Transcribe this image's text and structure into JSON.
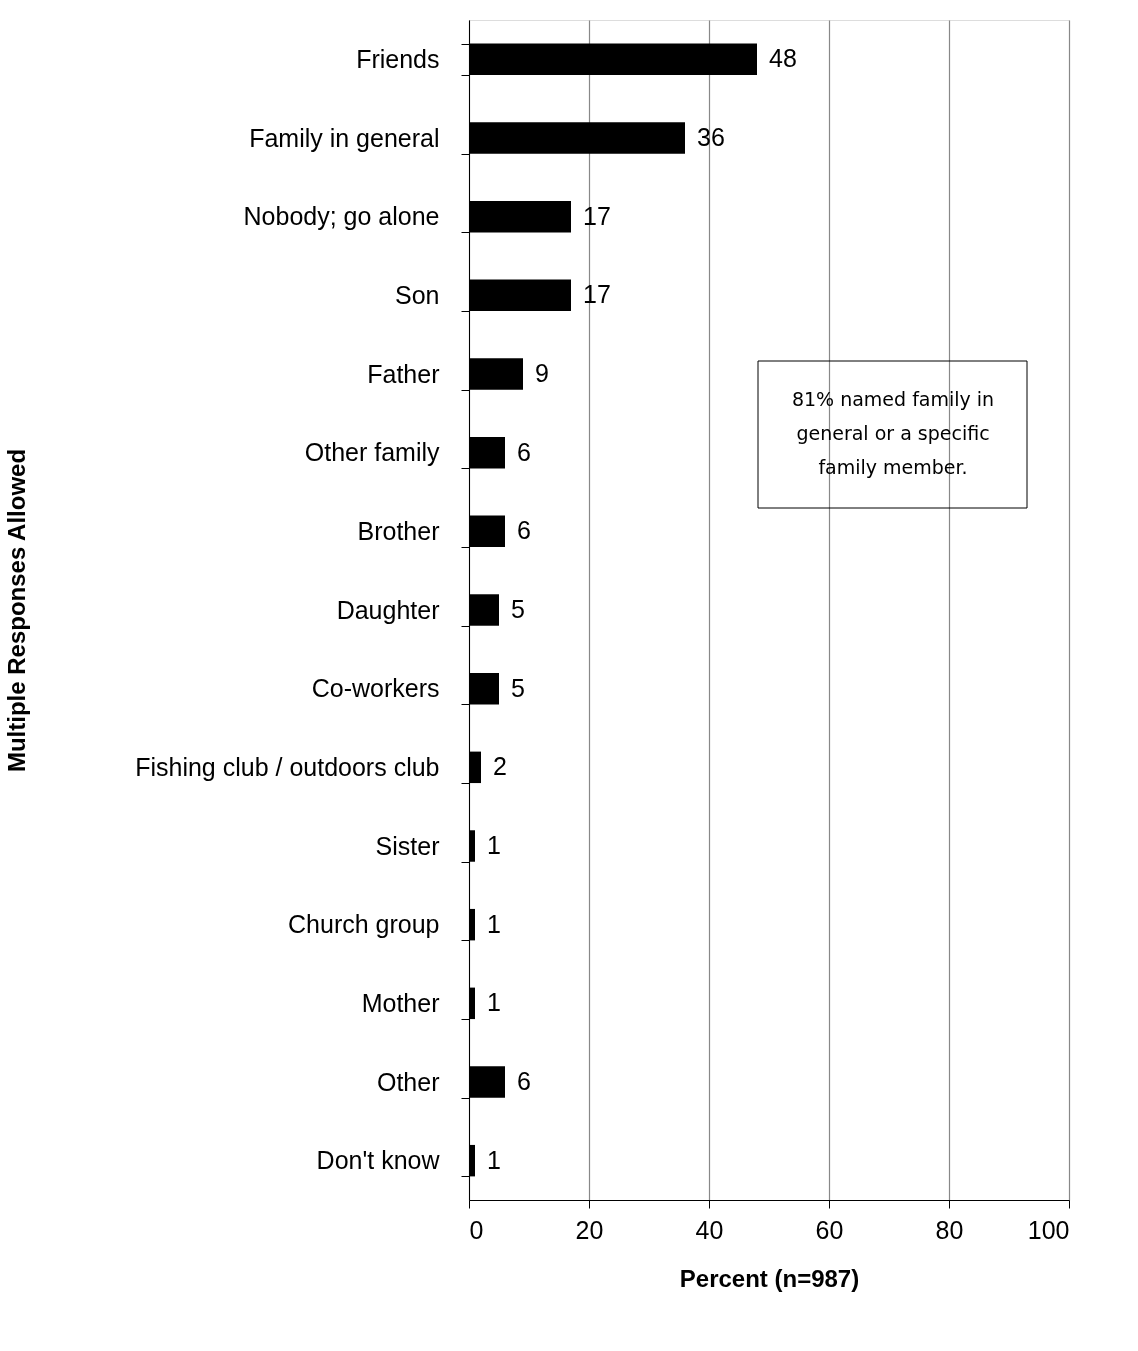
{
  "chart_data": {
    "type": "bar",
    "orientation": "horizontal",
    "categories": [
      "Friends",
      "Family in general",
      "Nobody; go alone",
      "Son",
      "Father",
      "Other family",
      "Brother",
      "Daughter",
      "Co-workers",
      "Fishing club / outdoors club",
      "Sister",
      "Church group",
      "Mother",
      "Other",
      "Don't know"
    ],
    "values": [
      48,
      36,
      17,
      17,
      9,
      6,
      6,
      5,
      5,
      2,
      1,
      1,
      1,
      6,
      1
    ],
    "color": "#000000",
    "xlim": [
      0,
      100
    ],
    "xticks": [
      0,
      20,
      40,
      60,
      80,
      100
    ],
    "grid": "x",
    "data_labels": true,
    "xlabel": "Percent (n=987)",
    "ylabel": "Multiple Responses Allowed",
    "annotations": [
      "81% named family in general or a specific family member."
    ]
  }
}
